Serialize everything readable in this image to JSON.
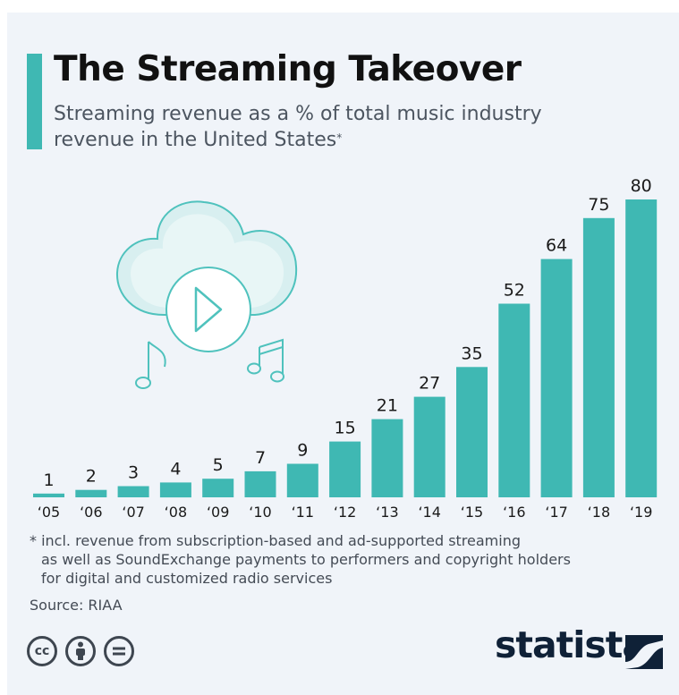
{
  "title": "The Streaming Takeover",
  "subtitle": "Streaming revenue as a % of total music industry revenue in the United States",
  "subtitle_marker": "*",
  "footnote": {
    "line1": "* incl. revenue from subscription-based and ad-supported streaming",
    "line2": "as well as SoundExchange payments to performers and copyright holders",
    "line3": "for digital and customized radio services"
  },
  "source": "Source: RIAA",
  "brand": "statista",
  "license_icons": [
    "cc-icon",
    "attribution-icon",
    "no-derivatives-icon"
  ],
  "colors": {
    "accent": "#3fb8b3",
    "background": "#f0f4f9",
    "text": "#111111",
    "brand": "#0f2137"
  },
  "chart_data": {
    "type": "bar",
    "categories": [
      "‘05",
      "‘06",
      "‘07",
      "‘08",
      "‘09",
      "‘10",
      "‘11",
      "‘12",
      "‘13",
      "‘14",
      "‘15",
      "‘16",
      "‘17",
      "‘18",
      "‘19"
    ],
    "values": [
      1,
      2,
      3,
      4,
      5,
      7,
      9,
      15,
      21,
      27,
      35,
      52,
      64,
      75,
      80
    ],
    "data_labels": [
      "1",
      "2",
      "3",
      "4",
      "5",
      "7",
      "9",
      "15",
      "21",
      "27",
      "35",
      "52",
      "64",
      "75",
      "80"
    ],
    "title": "The Streaming Takeover",
    "xlabel": "",
    "ylabel": "",
    "ylim": [
      0,
      80
    ],
    "grid": false,
    "legend": "none",
    "bar_color": "#3fb8b3"
  }
}
